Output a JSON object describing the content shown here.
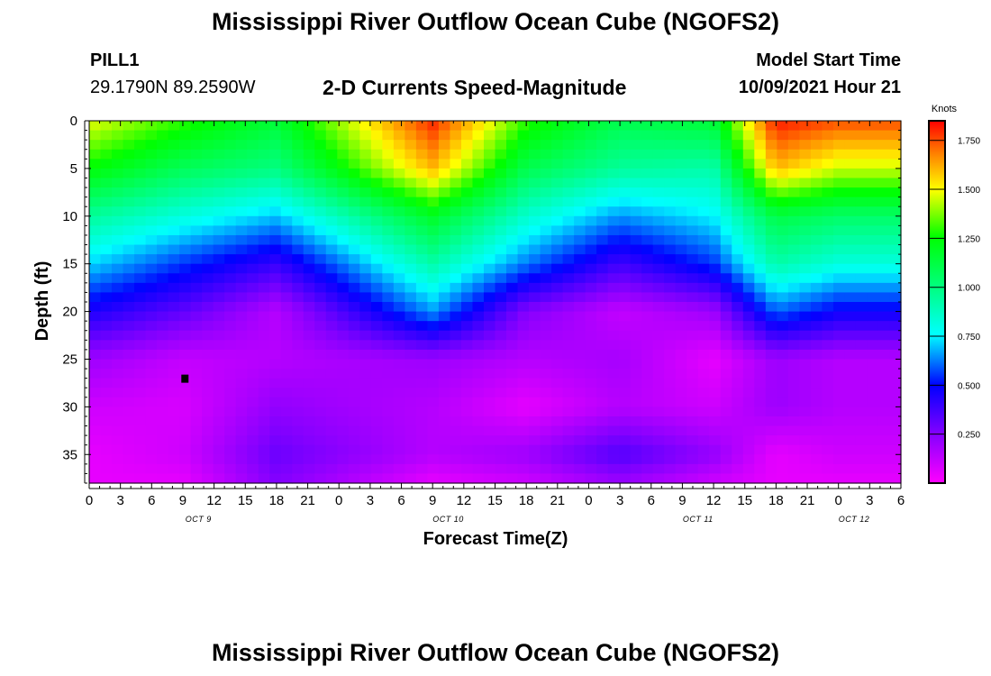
{
  "header": {
    "title": "Mississippi River Outflow Ocean Cube (NGOFS2)",
    "station": "PILL1",
    "coordinates": "29.1790N  89.2590W",
    "subtitle": "2-D Currents Speed-Magnitude",
    "model_start_label": "Model Start Time",
    "model_start_value": "10/09/2021 Hour 21"
  },
  "footer": {
    "title": "Mississippi River Outflow Ocean Cube (NGOFS2)"
  },
  "chart_data": {
    "type": "heatmap",
    "xlabel": "Forecast Time(Z)",
    "ylabel": "Depth (ft)",
    "x_start": "10/09/2021 00Z",
    "x_tick_labels": [
      "0",
      "3",
      "6",
      "9",
      "12",
      "15",
      "18",
      "21",
      "0",
      "3",
      "6",
      "9",
      "12",
      "15",
      "18",
      "21",
      "0",
      "3",
      "6",
      "9",
      "12",
      "15",
      "18",
      "21",
      "0",
      "3",
      "6"
    ],
    "date_labels": [
      {
        "text": "OCT 9",
        "at_tick": 3.5
      },
      {
        "text": "OCT 10",
        "at_tick": 11.5
      },
      {
        "text": "OCT 11",
        "at_tick": 19.5
      },
      {
        "text": "OCT 12",
        "at_tick": 24.5
      }
    ],
    "ylim": [
      0,
      38
    ],
    "y_inverted": true,
    "y_ticks": [
      0,
      5,
      10,
      15,
      20,
      25,
      30,
      35
    ],
    "colorbar": {
      "label": "Knots",
      "min": 0,
      "max": 1.85,
      "ticks": [
        "0.250",
        "0.500",
        "0.750",
        "1.000",
        "1.250",
        "1.500",
        "1.750"
      ],
      "tick_values": [
        0.25,
        0.5,
        0.75,
        1.0,
        1.25,
        1.5,
        1.75
      ]
    },
    "grid": false,
    "time_hours": [
      0,
      9,
      18,
      33,
      42,
      51,
      60,
      66,
      72
    ],
    "depth_ft": [
      0,
      5,
      10,
      15,
      20,
      25,
      30,
      35,
      38
    ],
    "speed_knots": [
      [
        1.48,
        1.25,
        0.95,
        0.72,
        0.45,
        0.2,
        0.1,
        0.05,
        0.05
      ],
      [
        1.3,
        1.08,
        0.82,
        0.55,
        0.32,
        0.12,
        0.08,
        0.1,
        0.05
      ],
      [
        1.15,
        1.0,
        0.7,
        0.4,
        0.15,
        0.15,
        0.22,
        0.3,
        0.25
      ],
      [
        1.8,
        1.6,
        1.18,
        0.92,
        0.65,
        0.2,
        0.15,
        0.15,
        0.05
      ],
      [
        1.3,
        1.1,
        0.85,
        0.62,
        0.25,
        0.15,
        0.05,
        0.2,
        0.1
      ],
      [
        1.1,
        0.95,
        0.65,
        0.38,
        0.12,
        0.18,
        0.15,
        0.35,
        0.2
      ],
      [
        1.15,
        0.92,
        0.75,
        0.55,
        0.2,
        0.05,
        0.1,
        0.22,
        0.1
      ],
      [
        1.82,
        1.6,
        1.12,
        0.92,
        0.6,
        0.2,
        0.2,
        0.05,
        0.05
      ],
      [
        1.75,
        1.45,
        1.05,
        0.82,
        0.48,
        0.15,
        0.15,
        0.1,
        0.05
      ]
    ],
    "marker": {
      "time_hours": 9.2,
      "depth_ft": 27
    }
  }
}
